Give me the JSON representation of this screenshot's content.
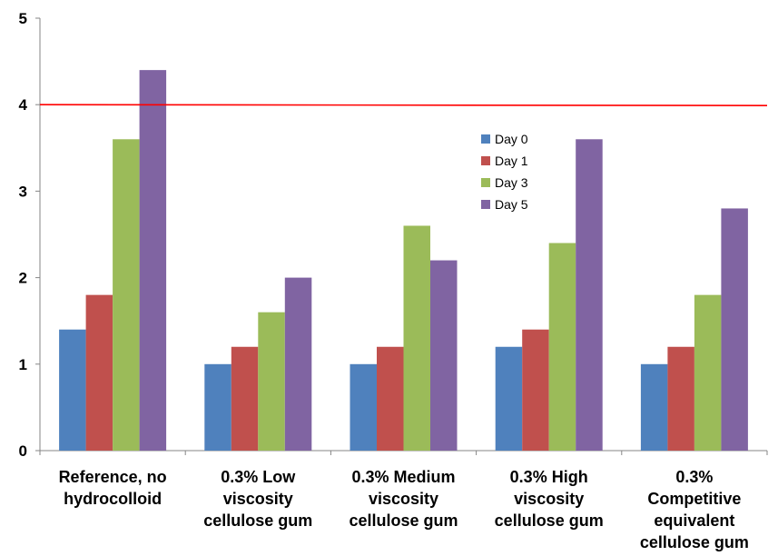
{
  "chart_data": {
    "type": "bar",
    "title": "",
    "xlabel": "",
    "ylabel": "",
    "ylim": [
      0,
      5
    ],
    "yticks": [
      0,
      1,
      2,
      3,
      4,
      5
    ],
    "grid": false,
    "legend_placement": "center-right inside plot",
    "categories": [
      [
        "Reference, no",
        "hydrocolloid"
      ],
      [
        "0.3% Low",
        "viscosity",
        "cellulose gum"
      ],
      [
        "0.3% Medium",
        "viscosity",
        "cellulose gum"
      ],
      [
        "0.3% High",
        "viscosity",
        "cellulose gum"
      ],
      [
        "0.3%",
        "Competitive",
        "equivalent",
        "cellulose gum"
      ]
    ],
    "series": [
      {
        "name": "Day 0",
        "color": "#4F81BD",
        "values": [
          1.4,
          1.0,
          1.0,
          1.2,
          1.0
        ]
      },
      {
        "name": "Day 1",
        "color": "#C0504D",
        "values": [
          1.8,
          1.2,
          1.2,
          1.4,
          1.2
        ]
      },
      {
        "name": "Day 3",
        "color": "#9BBB59",
        "values": [
          3.6,
          1.6,
          2.6,
          2.4,
          1.8
        ]
      },
      {
        "name": "Day 5",
        "color": "#8064A2",
        "values": [
          4.4,
          2.0,
          2.2,
          3.6,
          2.8
        ]
      }
    ],
    "reference_line": {
      "value": 4.0,
      "color": "#FF0000"
    }
  }
}
